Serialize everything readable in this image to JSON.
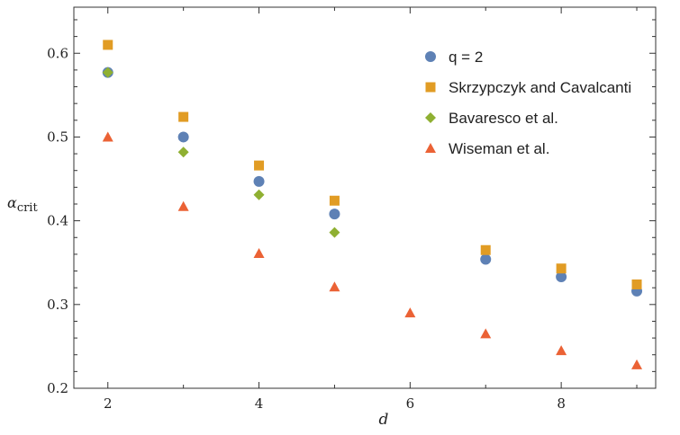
{
  "chart_data": {
    "type": "scatter",
    "title": "",
    "xlabel": "d",
    "ylabel": {
      "main": "α",
      "sub": "crit"
    },
    "xlim": [
      1.55,
      9.25
    ],
    "ylim": [
      0.2,
      0.655
    ],
    "x_ticks": [
      2,
      4,
      6,
      8
    ],
    "x_minor_ticks": [
      3,
      5,
      7,
      9
    ],
    "y_ticks": [
      0.2,
      0.3,
      0.4,
      0.5,
      0.6
    ],
    "y_tick_labels": [
      "0.2",
      "0.3",
      "0.4",
      "0.5",
      "0.6"
    ],
    "x_tick_labels": [
      "2",
      "4",
      "6",
      "8"
    ],
    "grid": false,
    "legend_position": "top-right",
    "series": [
      {
        "name": "q = 2",
        "marker": "circle",
        "color": "#5e81b5",
        "x": [
          2,
          3,
          4,
          5,
          7,
          8,
          9
        ],
        "y": [
          0.577,
          0.5,
          0.447,
          0.408,
          0.354,
          0.333,
          0.316
        ]
      },
      {
        "name": "Skrzypczyk and Cavalcanti",
        "marker": "square",
        "color": "#e19c24",
        "x": [
          2,
          3,
          4,
          5,
          7,
          8,
          9
        ],
        "y": [
          0.61,
          0.524,
          0.466,
          0.424,
          0.365,
          0.343,
          0.324
        ]
      },
      {
        "name": "Bavaresco et al.",
        "marker": "diamond",
        "color": "#8fb032",
        "x": [
          2,
          3,
          4,
          5
        ],
        "y": [
          0.577,
          0.482,
          0.431,
          0.386
        ]
      },
      {
        "name": "Wiseman et al.",
        "marker": "triangle",
        "color": "#eb6235",
        "x": [
          2,
          3,
          4,
          5,
          6,
          7,
          8,
          9
        ],
        "y": [
          0.5,
          0.417,
          0.361,
          0.321,
          0.29,
          0.265,
          0.245,
          0.228
        ]
      }
    ]
  }
}
